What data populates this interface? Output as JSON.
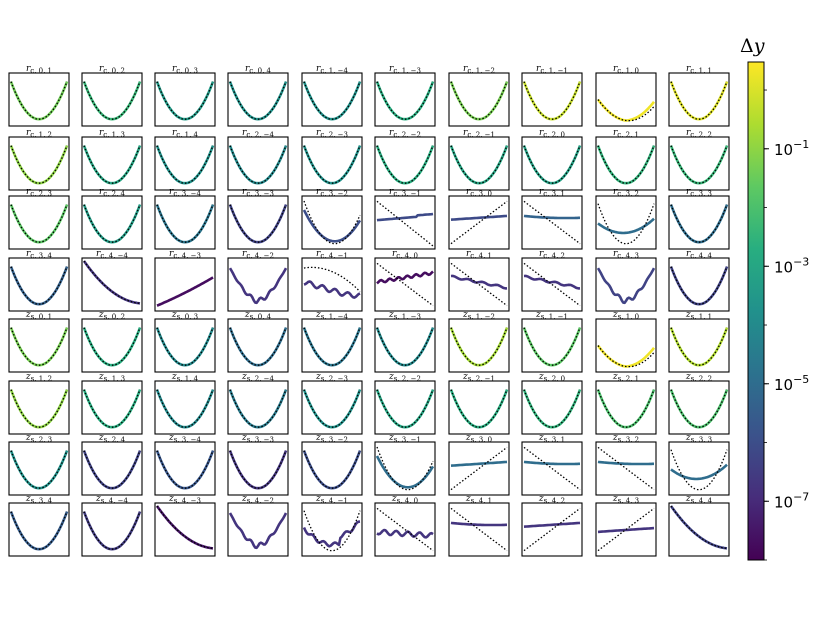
{
  "chart_data": {
    "type": "line",
    "colorbar": {
      "label_symbol": "Δ",
      "label_var": "y",
      "scale": "log",
      "range": [
        1e-08,
        3
      ],
      "colormap": "viridis",
      "ticks": [
        {
          "base": "10",
          "exp": "−1",
          "value": 0.1
        },
        {
          "base": "10",
          "exp": "−3",
          "value": 0.001
        },
        {
          "base": "10",
          "exp": "−5",
          "value": 1e-05
        },
        {
          "base": "10",
          "exp": "−7",
          "value": 1e-07
        }
      ]
    },
    "reference_style": "black dotted parabola",
    "panels": [
      {
        "var": "r",
        "sub": "c, 0, 1",
        "dy": 0.04,
        "shape": "parabola"
      },
      {
        "var": "r",
        "sub": "c, 0, 2",
        "dy": 0.004,
        "shape": "parabola"
      },
      {
        "var": "r",
        "sub": "c, 0, 3",
        "dy": 0.0004,
        "shape": "parabola"
      },
      {
        "var": "r",
        "sub": "c, 0, 4",
        "dy": 0.0002,
        "shape": "parabola"
      },
      {
        "var": "r",
        "sub": "c, 1, −4",
        "dy": 0.0002,
        "shape": "parabola"
      },
      {
        "var": "r",
        "sub": "c, 1, −3",
        "dy": 0.002,
        "shape": "parabola"
      },
      {
        "var": "r",
        "sub": "c, 1, −2",
        "dy": 0.05,
        "shape": "parabola"
      },
      {
        "var": "r",
        "sub": "c, 1, −1",
        "dy": 0.6,
        "shape": "parabola"
      },
      {
        "var": "r",
        "sub": "c, 1, 0",
        "dy": 2,
        "shape": "shifted"
      },
      {
        "var": "r",
        "sub": "c, 1, 1",
        "dy": 1.2,
        "shape": "parabola"
      },
      {
        "var": "r",
        "sub": "c, 1, 2",
        "dy": 0.1,
        "shape": "parabola"
      },
      {
        "var": "r",
        "sub": "c, 1, 3",
        "dy": 0.001,
        "shape": "parabola"
      },
      {
        "var": "r",
        "sub": "c, 1, 4",
        "dy": 0.0002,
        "shape": "parabola"
      },
      {
        "var": "r",
        "sub": "c, 2, −4",
        "dy": 0.0001,
        "shape": "parabola"
      },
      {
        "var": "r",
        "sub": "c, 2, −3",
        "dy": 0.0002,
        "shape": "parabola"
      },
      {
        "var": "r",
        "sub": "c, 2, −2",
        "dy": 0.002,
        "shape": "parabola"
      },
      {
        "var": "r",
        "sub": "c, 2, −1",
        "dy": 0.001,
        "shape": "parabola"
      },
      {
        "var": "r",
        "sub": "c, 2, 0",
        "dy": 0.0007,
        "shape": "parabola"
      },
      {
        "var": "r",
        "sub": "c, 2, 1",
        "dy": 0.003,
        "shape": "parabola"
      },
      {
        "var": "r",
        "sub": "c, 2, 2",
        "dy": 0.004,
        "shape": "parabola"
      },
      {
        "var": "r",
        "sub": "c, 2, 3",
        "dy": 0.02,
        "shape": "parabola"
      },
      {
        "var": "r",
        "sub": "c, 2, 4",
        "dy": 0.0005,
        "shape": "parabola"
      },
      {
        "var": "r",
        "sub": "c, 3, −4",
        "dy": 2e-05,
        "shape": "parabola"
      },
      {
        "var": "r",
        "sub": "c, 3, −3",
        "dy": 5e-07,
        "shape": "parabola"
      },
      {
        "var": "r",
        "sub": "c, 3, −2",
        "dy": 1e-06,
        "shape": "shallow"
      },
      {
        "var": "r",
        "sub": "c, 3, −1",
        "dy": 8e-07,
        "shape": "flatnoisy"
      },
      {
        "var": "r",
        "sub": "c, 3, 0",
        "dy": 8e-07,
        "shape": "flat_up"
      },
      {
        "var": "r",
        "sub": "c, 3, 1",
        "dy": 5e-06,
        "shape": "flat_down"
      },
      {
        "var": "r",
        "sub": "c, 3, 2",
        "dy": 1e-05,
        "shape": "wide"
      },
      {
        "var": "r",
        "sub": "c, 3, 3",
        "dy": 1e-05,
        "shape": "parabola"
      },
      {
        "var": "r",
        "sub": "c, 3, 4",
        "dy": 4e-06,
        "shape": "parabola"
      },
      {
        "var": "r",
        "sub": "c, 4, −4",
        "dy": 2e-07,
        "shape": "decline"
      },
      {
        "var": "r",
        "sub": "c, 4, −3",
        "dy": 2e-08,
        "shape": "rise"
      },
      {
        "var": "r",
        "sub": "c, 4, −2",
        "dy": 2e-07,
        "shape": "noisybowl"
      },
      {
        "var": "r",
        "sub": "c, 4, −1",
        "dy": 2e-07,
        "shape": "noisydecline"
      },
      {
        "var": "r",
        "sub": "c, 4, 0",
        "dy": 2e-08,
        "shape": "noisyrise"
      },
      {
        "var": "r",
        "sub": "c, 4, 1",
        "dy": 2e-07,
        "shape": "cross_down"
      },
      {
        "var": "r",
        "sub": "c, 4, 2",
        "dy": 2e-07,
        "shape": "cross_down"
      },
      {
        "var": "r",
        "sub": "c, 4, 3",
        "dy": 5e-07,
        "shape": "noisybowl"
      },
      {
        "var": "r",
        "sub": "c, 4, 4",
        "dy": 5e-07,
        "shape": "parabola"
      },
      {
        "var": "z",
        "sub": "s, 0, 1",
        "dy": 0.05,
        "shape": "parabola"
      },
      {
        "var": "z",
        "sub": "s, 0, 2",
        "dy": 0.002,
        "shape": "parabola"
      },
      {
        "var": "z",
        "sub": "s, 0, 3",
        "dy": 0.0001,
        "shape": "parabola"
      },
      {
        "var": "z",
        "sub": "s, 0, 4",
        "dy": 1e-05,
        "shape": "parabola"
      },
      {
        "var": "z",
        "sub": "s, 1, −4",
        "dy": 2e-05,
        "shape": "parabola"
      },
      {
        "var": "z",
        "sub": "s, 1, −3",
        "dy": 0.0001,
        "shape": "parabola"
      },
      {
        "var": "z",
        "sub": "s, 1, −2",
        "dy": 0.2,
        "shape": "parabola"
      },
      {
        "var": "z",
        "sub": "s, 1, −1",
        "dy": 0.02,
        "shape": "parabola"
      },
      {
        "var": "z",
        "sub": "s, 1, 0",
        "dy": 2,
        "shape": "shifted"
      },
      {
        "var": "z",
        "sub": "s, 1, 1",
        "dy": 0.3,
        "shape": "parabola"
      },
      {
        "var": "z",
        "sub": "s, 1, 2",
        "dy": 0.1,
        "shape": "parabola"
      },
      {
        "var": "z",
        "sub": "s, 1, 3",
        "dy": 0.002,
        "shape": "parabola"
      },
      {
        "var": "z",
        "sub": "s, 1, 4",
        "dy": 0.0001,
        "shape": "parabola"
      },
      {
        "var": "z",
        "sub": "s, 2, −4",
        "dy": 3e-05,
        "shape": "parabola"
      },
      {
        "var": "z",
        "sub": "s, 2, −3",
        "dy": 0.0002,
        "shape": "parabola"
      },
      {
        "var": "z",
        "sub": "s, 2, −2",
        "dy": 0.001,
        "shape": "parabola"
      },
      {
        "var": "z",
        "sub": "s, 2, −1",
        "dy": 0.002,
        "shape": "parabola"
      },
      {
        "var": "z",
        "sub": "s, 2, 0",
        "dy": 0.003,
        "shape": "parabola"
      },
      {
        "var": "z",
        "sub": "s, 2, 1",
        "dy": 0.01,
        "shape": "parabola"
      },
      {
        "var": "z",
        "sub": "s, 2, 2",
        "dy": 0.01,
        "shape": "parabola"
      },
      {
        "var": "z",
        "sub": "s, 2, 3",
        "dy": 0.0002,
        "shape": "parabola"
      },
      {
        "var": "z",
        "sub": "s, 2, 4",
        "dy": 5e-07,
        "shape": "parabola"
      },
      {
        "var": "z",
        "sub": "s, 3, −4",
        "dy": 2e-06,
        "shape": "parabola"
      },
      {
        "var": "z",
        "sub": "s, 3, −3",
        "dy": 2e-07,
        "shape": "parabola"
      },
      {
        "var": "z",
        "sub": "s, 3, −2",
        "dy": 1e-06,
        "shape": "parabola"
      },
      {
        "var": "z",
        "sub": "s, 3, −1",
        "dy": 1e-05,
        "shape": "shallow"
      },
      {
        "var": "z",
        "sub": "s, 3, 0",
        "dy": 1e-05,
        "shape": "flat_up"
      },
      {
        "var": "z",
        "sub": "s, 3, 1",
        "dy": 1e-05,
        "shape": "flat_down"
      },
      {
        "var": "z",
        "sub": "s, 3, 2",
        "dy": 1e-05,
        "shape": "flat_down"
      },
      {
        "var": "z",
        "sub": "s, 3, 3",
        "dy": 1e-05,
        "shape": "wide"
      },
      {
        "var": "z",
        "sub": "s, 3, 4",
        "dy": 3e-06,
        "shape": "parabola"
      },
      {
        "var": "z",
        "sub": "s, 4, −4",
        "dy": 3e-07,
        "shape": "parabola"
      },
      {
        "var": "z",
        "sub": "s, 4, −3",
        "dy": 3e-08,
        "shape": "decline"
      },
      {
        "var": "z",
        "sub": "s, 4, −2",
        "dy": 2e-07,
        "shape": "noisybowl"
      },
      {
        "var": "z",
        "sub": "s, 4, −1",
        "dy": 2e-07,
        "shape": "noisybowl2"
      },
      {
        "var": "z",
        "sub": "s, 4, 0",
        "dy": 2e-07,
        "shape": "noisyflat"
      },
      {
        "var": "z",
        "sub": "s, 4, 1",
        "dy": 2e-07,
        "shape": "flat_down"
      },
      {
        "var": "z",
        "sub": "s, 4, 2",
        "dy": 2e-07,
        "shape": "flat_up"
      },
      {
        "var": "z",
        "sub": "s, 4, 3",
        "dy": 2e-07,
        "shape": "rise_slight"
      },
      {
        "var": "z",
        "sub": "s, 4, 4",
        "dy": 5e-07,
        "shape": "decline"
      }
    ]
  }
}
